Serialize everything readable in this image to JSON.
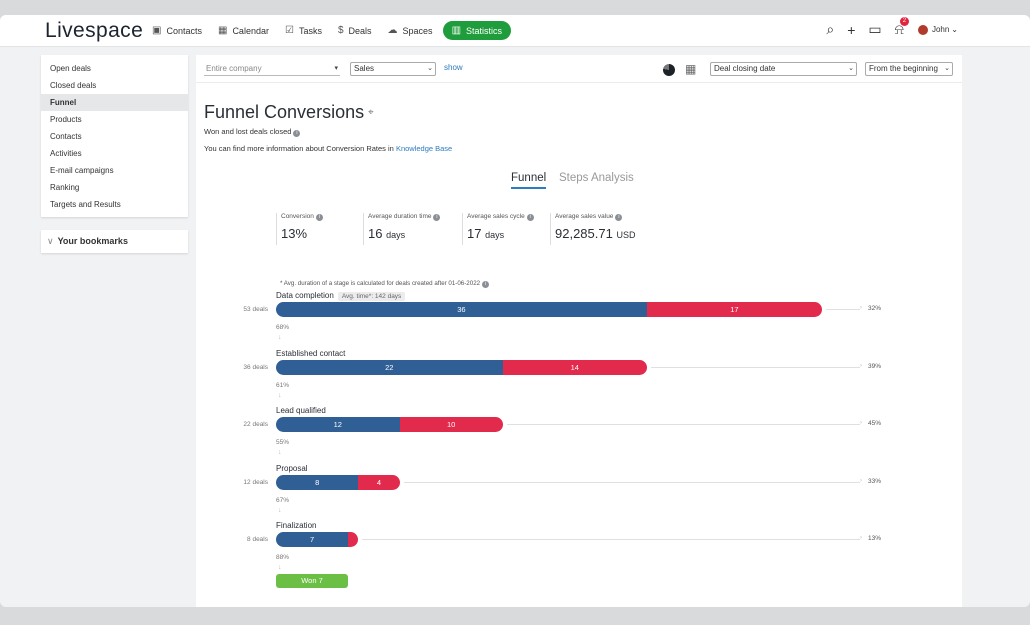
{
  "app": {
    "logo": "Livespace"
  },
  "nav": [
    {
      "label": "Contacts",
      "icon": "contacts-icon",
      "glyph": "▣"
    },
    {
      "label": "Calendar",
      "icon": "calendar-icon",
      "glyph": "▦"
    },
    {
      "label": "Tasks",
      "icon": "tasks-icon",
      "glyph": "☑"
    },
    {
      "label": "Deals",
      "icon": "dollar-icon",
      "glyph": "$"
    },
    {
      "label": "Spaces",
      "icon": "cloud-icon",
      "glyph": "☁"
    },
    {
      "label": "Statistics",
      "icon": "bar-chart-icon",
      "glyph": "▥",
      "active": true
    }
  ],
  "header": {
    "notifications_count": "2",
    "user_name": "John"
  },
  "sidebar": {
    "items": [
      {
        "label": "Open deals"
      },
      {
        "label": "Closed deals"
      },
      {
        "label": "Funnel",
        "active": true
      },
      {
        "label": "Products"
      },
      {
        "label": "Contacts"
      },
      {
        "label": "Activities"
      },
      {
        "label": "E-mail campaigns"
      },
      {
        "label": "Ranking"
      },
      {
        "label": "Targets and Results"
      }
    ],
    "bookmarks_label": "Your bookmarks"
  },
  "filters": {
    "company": "Entire company",
    "pipeline": "Sales",
    "show_link": "show",
    "date_field": "Deal closing date",
    "period": "From the beginning"
  },
  "page": {
    "title": "Funnel Conversions",
    "subtitle": "Won and lost deals closed",
    "kb_prefix": "You can find more information about Conversion Rates in",
    "kb_link": "Knowledge Base",
    "tabs": [
      {
        "label": "Funnel",
        "active": true
      },
      {
        "label": "Steps Analysis"
      }
    ]
  },
  "stats": {
    "conversion": {
      "label": "Conversion",
      "value": "13%"
    },
    "avg_duration": {
      "label": "Average duration time",
      "value": "16",
      "unit": "days"
    },
    "avg_cycle": {
      "label": "Average sales cycle",
      "value": "17",
      "unit": "days"
    },
    "avg_value": {
      "label": "Average sales value",
      "value": "92,285.71",
      "unit": "USD"
    }
  },
  "note": "* Avg. duration of a stage is calculated for deals created after 01-06-2022",
  "funnel": {
    "stages": [
      {
        "name": "Data completion",
        "avg_tag": "Avg. time*: 142 days",
        "deals_label": "53 deals",
        "total": 53,
        "won": 36,
        "lost": 17,
        "won_label": "36",
        "lost_label": "17",
        "rate": "32%",
        "next_conv": "68%"
      },
      {
        "name": "Established contact",
        "avg_tag": "",
        "deals_label": "36 deals",
        "total": 36,
        "won": 22,
        "lost": 14,
        "won_label": "22",
        "lost_label": "14",
        "rate": "39%",
        "next_conv": "61%"
      },
      {
        "name": "Lead qualified",
        "avg_tag": "",
        "deals_label": "22 deals",
        "total": 22,
        "won": 12,
        "lost": 10,
        "won_label": "12",
        "lost_label": "10",
        "rate": "45%",
        "next_conv": "55%"
      },
      {
        "name": "Proposal",
        "avg_tag": "",
        "deals_label": "12 deals",
        "total": 12,
        "won": 8,
        "lost": 4,
        "won_label": "8",
        "lost_label": "4",
        "rate": "33%",
        "next_conv": "67%"
      },
      {
        "name": "Finalization",
        "avg_tag": "",
        "deals_label": "8 deals",
        "total": 8,
        "won": 7,
        "lost": 1,
        "won_label": "7",
        "lost_label": "",
        "rate": "13%",
        "next_conv": "88%"
      }
    ],
    "won_label": "Won 7"
  },
  "colors": {
    "won": "#2f5f94",
    "lost": "#e22a4d",
    "won_final": "#6cbf45",
    "accent": "#1f9c3b",
    "link": "#2d7bc0"
  }
}
